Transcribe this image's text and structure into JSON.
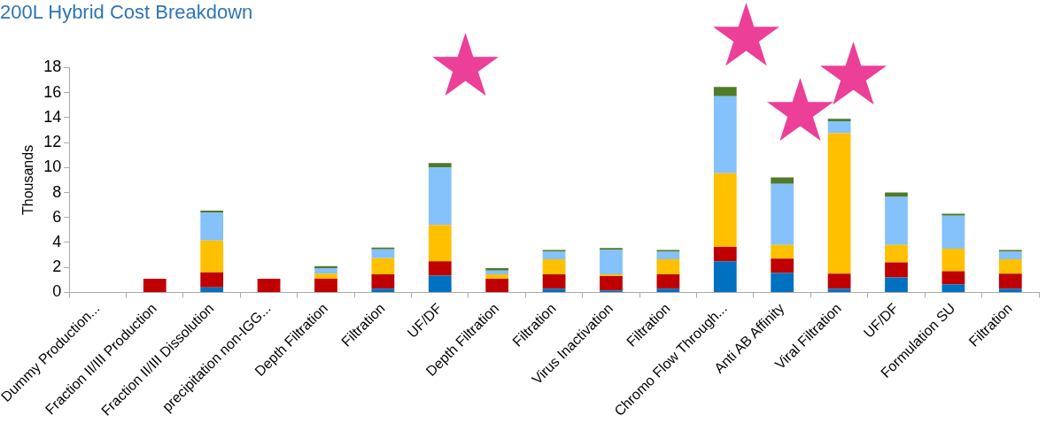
{
  "chart_data": {
    "type": "bar",
    "title": "200L Hybrid Cost Breakdown",
    "ylabel": "Thousands",
    "stacked": true,
    "categories": [
      "Dummy Production...",
      "Fraction II/III Production",
      "Fraction II/III Dissolution",
      "precipitation non-IGG...",
      "Depth Filtration",
      "Filtration",
      "UF/DF",
      "Depth Filtration",
      "Filtration",
      "Virus Inactivation",
      "Filtration",
      "Chromo Flow Through...",
      "Anti AB Affinity",
      "Viral Filtration",
      "UF/DF",
      "Formulation SU",
      "Filtration"
    ],
    "series": [
      {
        "color": "#0070c0",
        "values": [
          0,
          0,
          0.4,
          0,
          0,
          0.3,
          1.35,
          0,
          0.3,
          0.15,
          0.3,
          2.5,
          1.55,
          0.3,
          1.2,
          0.65,
          0.3
        ]
      },
      {
        "color": "#c00000",
        "values": [
          0,
          1.1,
          1.2,
          1.1,
          1.1,
          1.15,
          1.15,
          1.1,
          1.15,
          1.15,
          1.15,
          1.15,
          1.15,
          1.2,
          1.2,
          1.05,
          1.2
        ]
      },
      {
        "color": "#ffc000",
        "values": [
          0,
          0,
          2.55,
          0,
          0.4,
          1.3,
          2.9,
          0.35,
          1.2,
          0.15,
          1.2,
          5.9,
          1.1,
          11.25,
          1.4,
          1.8,
          1.15
        ]
      },
      {
        "color": "#85c1fb",
        "values": [
          0,
          0,
          2.25,
          0,
          0.45,
          0.7,
          4.6,
          0.3,
          0.6,
          1.95,
          0.6,
          6.15,
          4.9,
          0.95,
          3.85,
          2.65,
          0.6
        ]
      },
      {
        "color": "#4f7a28",
        "values": [
          0,
          0,
          0.15,
          0,
          0.15,
          0.15,
          0.35,
          0.2,
          0.15,
          0.15,
          0.15,
          0.75,
          0.5,
          0.2,
          0.35,
          0.15,
          0.15
        ]
      }
    ],
    "ylim": [
      0,
      18
    ],
    "yticks": [
      0,
      2,
      4,
      6,
      8,
      10,
      12,
      14,
      16,
      18
    ],
    "grid": false,
    "legend": false
  }
}
